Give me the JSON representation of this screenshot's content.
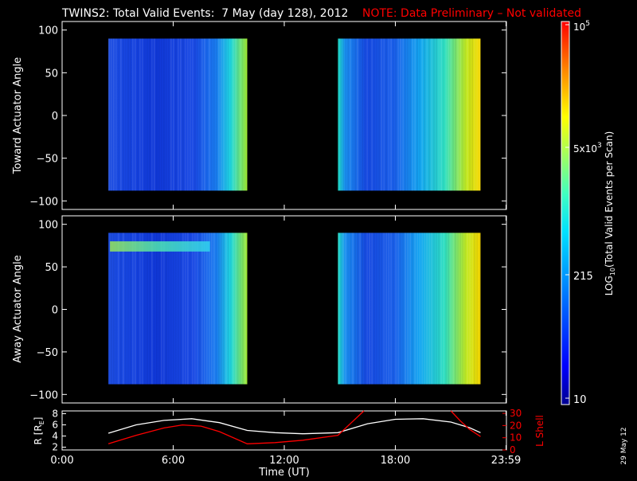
{
  "header": {
    "title": "TWINS2: Total Valid Events:  7 May (day 128), 2012",
    "note": "NOTE: Data Preliminary – Not validated",
    "note_color": "#ff0000"
  },
  "footer": {
    "date_stamp": "29 May 12"
  },
  "chart_data": [
    {
      "type": "heatmap",
      "panel": "toward",
      "ylabel": "Toward Actuator Angle",
      "ylim": [
        -110,
        110
      ],
      "yticks": [
        "100",
        "50",
        "0",
        "−50",
        "−100"
      ],
      "ytick_values": [
        100,
        50,
        0,
        -50,
        -100
      ],
      "xlim": [
        0,
        24
      ],
      "angle_range": [
        -88,
        90
      ],
      "blocks": [
        {
          "start_hour": 2.5,
          "end_hour": 10.0
        },
        {
          "start_hour": 14.9,
          "end_hour": 22.6
        }
      ]
    },
    {
      "type": "heatmap",
      "panel": "away",
      "ylabel": "Away Actuator Angle",
      "ylim": [
        -110,
        110
      ],
      "yticks": [
        "100",
        "50",
        "0",
        "−50",
        "−100"
      ],
      "ytick_values": [
        100,
        50,
        0,
        -50,
        -100
      ],
      "xlim": [
        0,
        24
      ],
      "angle_range": [
        -88,
        90
      ],
      "blocks": [
        {
          "start_hour": 2.5,
          "end_hour": 10.0
        },
        {
          "start_hour": 14.9,
          "end_hour": 22.6
        }
      ]
    },
    {
      "type": "line",
      "panel": "orbit",
      "xlabel": "Time (UT)",
      "xticks": [
        "0:00",
        "6:00",
        "12:00",
        "18:00",
        "23:59"
      ],
      "xtick_values": [
        0,
        6,
        12,
        18,
        23.98
      ],
      "left_axis": {
        "label": "R [R",
        "label_sub": "E",
        "label_end": "]",
        "ticks": [
          "8",
          "6",
          "4",
          "2"
        ],
        "tick_values": [
          8,
          6,
          4,
          2
        ],
        "ylim": [
          1.5,
          8.5
        ]
      },
      "right_axis": {
        "label": "L Shell",
        "ticks": [
          "30",
          "20",
          "10",
          "0"
        ],
        "tick_values": [
          30,
          20,
          10,
          0
        ],
        "ylim": [
          0,
          32
        ],
        "color": "#ff0000"
      },
      "series": [
        {
          "axis": "left",
          "color": "#ffffff",
          "x": [
            2.5,
            4,
            5.5,
            7,
            8.5,
            10,
            11.5,
            13,
            14.9,
            16.5,
            18,
            19.5,
            21,
            22,
            22.6
          ],
          "y": [
            4.5,
            6.0,
            6.8,
            7.1,
            6.4,
            5.0,
            4.6,
            4.4,
            4.6,
            6.2,
            7.0,
            7.1,
            6.5,
            5.5,
            4.6
          ]
        },
        {
          "axis": "right",
          "x": [
            2.5,
            4,
            5.5,
            6.5,
            7.5,
            8.5,
            10,
            11.5,
            13,
            14.9,
            15.6,
            16.3
          ],
          "y": [
            5,
            12,
            18,
            20.5,
            19.5,
            15,
            5,
            6,
            8,
            12,
            22,
            32
          ],
          "color": "#ff0000"
        },
        {
          "axis": "right",
          "x": [
            21.0,
            21.5,
            22.0,
            22.6
          ],
          "y": [
            32,
            24,
            17,
            11
          ],
          "color": "#ff0000"
        }
      ]
    }
  ],
  "colorbar": {
    "label": "LOG10(Total Valid Events per Scan)",
    "label_pre": "LOG",
    "label_sub": "10",
    "label_post": "(Total Valid Events per Scan)",
    "tick_min": "10",
    "tick_215": "215",
    "tick_5e3_base": "5x10",
    "tick_5e3_exp": "3",
    "tick_max_base": "10",
    "tick_max_exp": "5",
    "tick_values": [
      10,
      215,
      5000,
      100000
    ],
    "range": [
      10,
      100000
    ],
    "scale": "log"
  },
  "palette": {
    "axis_color": "#ffffff",
    "frame_color": "#ffffff",
    "background": "#000000"
  }
}
